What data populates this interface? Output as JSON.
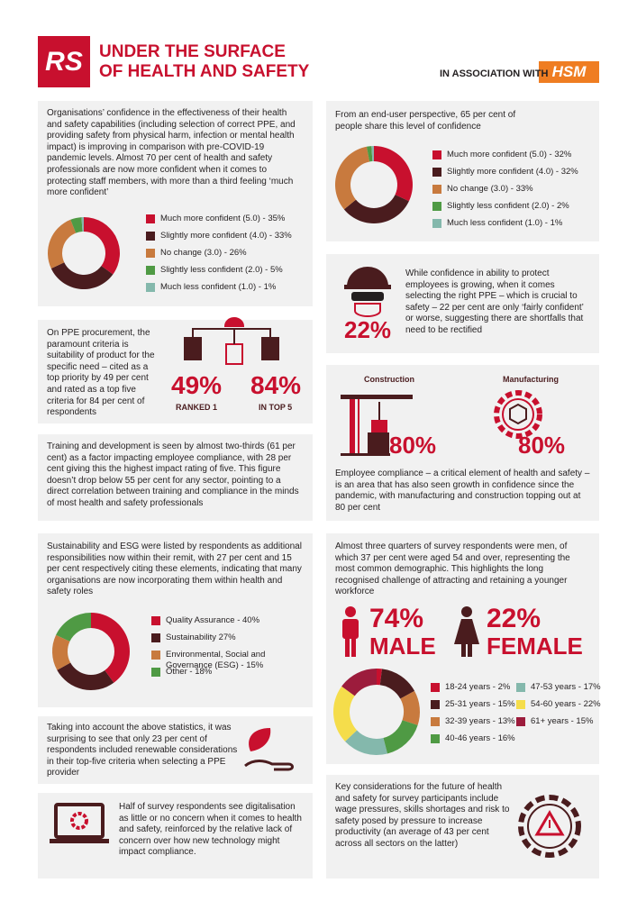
{
  "header": {
    "logo": "RS",
    "title_line1": "UNDER THE SURFACE",
    "title_line2": "OF HEALTH AND SAFETY",
    "association": "IN ASSOCIATION WITH",
    "partner_logo": "HSM"
  },
  "panels": {
    "professionals": "Organisations’ confidence in the effectiveness of their health and safety capabilities (including selection of correct PPE, and providing safety from physical harm, infection or mental health impact) is improving in comparison with pre-COVID-19 pandemic levels. Almost 70 per cent of health and safety professionals are now more confident when it comes to protecting staff members, with more than a third feeling ‘much more confident’",
    "end_users": "From an end-user perspective, 65 per cent of people share this level of confidence",
    "ppe": {
      "text": "On PPE procurement, the paramount criteria is suitability of product for the specific need – cited as a top priority by 49 per cent and rated as a top five criteria for 84 per cent of respondents",
      "stat1": "49%",
      "label1": "RANKED 1",
      "stat2": "84%",
      "label2": "IN TOP 5"
    },
    "ppe_selection": {
      "stat": "22%",
      "text": "While confidence in ability to protect employees is growing, when it comes selecting the right PPE – which is crucial to safety – 22 per cent are only ‘fairly confident’ or worse, suggesting there are shortfalls that need to be rectified"
    },
    "compliance": {
      "sector1": "Construction",
      "stat1": "80%",
      "sector2": "Manufacturing",
      "stat2": "80%",
      "text": "Employee compliance – a critical element of health and safety – is an area that has also seen growth in confidence since the pandemic, with manufacturing and construction topping out at 80 per cent"
    },
    "training": "Training and development is seen by almost two-thirds (61 per cent) as a factor impacting employee compliance, with 28 per cent giving this the highest impact rating of five. This figure doesn’t drop below 55 per cent for any sector, pointing to a direct correlation between training and compliance in the minds of most health and safety professionals",
    "sustainability": "Sustainability and ESG were listed by respondents as additional responsibilities now within their remit, with 27 per cent and 15 per cent respectively citing these elements, indicating that many organisations are now incorporating them within health and safety roles",
    "demographics": {
      "text": "Almost three quarters of survey respondents were men, of which 37 per cent were aged 54 and over, representing the most common demographic. This highlights the long recognised challenge of attracting and retaining a younger workforce",
      "male_stat": "74%",
      "male_label": "MALE",
      "female_stat": "22%",
      "female_label": "FEMALE"
    },
    "renewable": "Taking into account the above statistics, it was surprising to see that only 23 per cent of respondents included renewable considerations in their top-five criteria when selecting a PPE provider",
    "digitalisation": "Half of survey respondents see digitalisation as little or no concern when it comes to health and safety, reinforced by the relative lack of concern over how new technology might impact compliance.",
    "key_considerations": "Key considerations for the future of health and safety for survey participants include wage pressures, skills shortages and risk to safety posed by pressure to increase productivity (an average of 43 per cent across all sectors on the latter)"
  },
  "chart_data": [
    {
      "type": "donut",
      "categories": [
        "Much more confident (5.0) - 35%",
        "Slightly more confident (4.0) - 33%",
        "No change (3.0) - 26%",
        "Slightly less confident (2.0) - 5%",
        "Much less confident (1.0) - 1%"
      ],
      "values": [
        35,
        33,
        26,
        5,
        1
      ],
      "colors": [
        "#c8102e",
        "#4a1c1e",
        "#c87a3e",
        "#4f9a44",
        "#84b8ac"
      ]
    },
    {
      "type": "donut",
      "categories": [
        "Much more confident (5.0) - 32%",
        "Slightly more confident (4.0) - 32%",
        "No change (3.0) - 33%",
        "Slightly less confident (2.0) - 2%",
        "Much less confident (1.0) - 1%"
      ],
      "values": [
        32,
        32,
        33,
        2,
        1
      ],
      "colors": [
        "#c8102e",
        "#4a1c1e",
        "#c87a3e",
        "#4f9a44",
        "#84b8ac"
      ]
    },
    {
      "type": "donut",
      "categories": [
        "Quality Assurance - 40%",
        "Sustainability 27%",
        "Environmental, Social and Governance (ESG) - 15%",
        "Other - 18%"
      ],
      "values": [
        40,
        27,
        15,
        18
      ],
      "colors": [
        "#c8102e",
        "#4a1c1e",
        "#c87a3e",
        "#4f9a44"
      ]
    },
    {
      "type": "donut",
      "categories": [
        "18-24 years - 2%",
        "25-31 years - 15%",
        "32-39 years - 13%",
        "40-46 years - 16%",
        "47-53 years - 17%",
        "54-60 years - 22%",
        "61+ years - 15%"
      ],
      "values": [
        2,
        15,
        13,
        16,
        17,
        22,
        15
      ],
      "colors": [
        "#c8102e",
        "#4a1c1e",
        "#c87a3e",
        "#4f9a44",
        "#84b8ac",
        "#f5dd4b",
        "#9c1c3c"
      ]
    }
  ]
}
